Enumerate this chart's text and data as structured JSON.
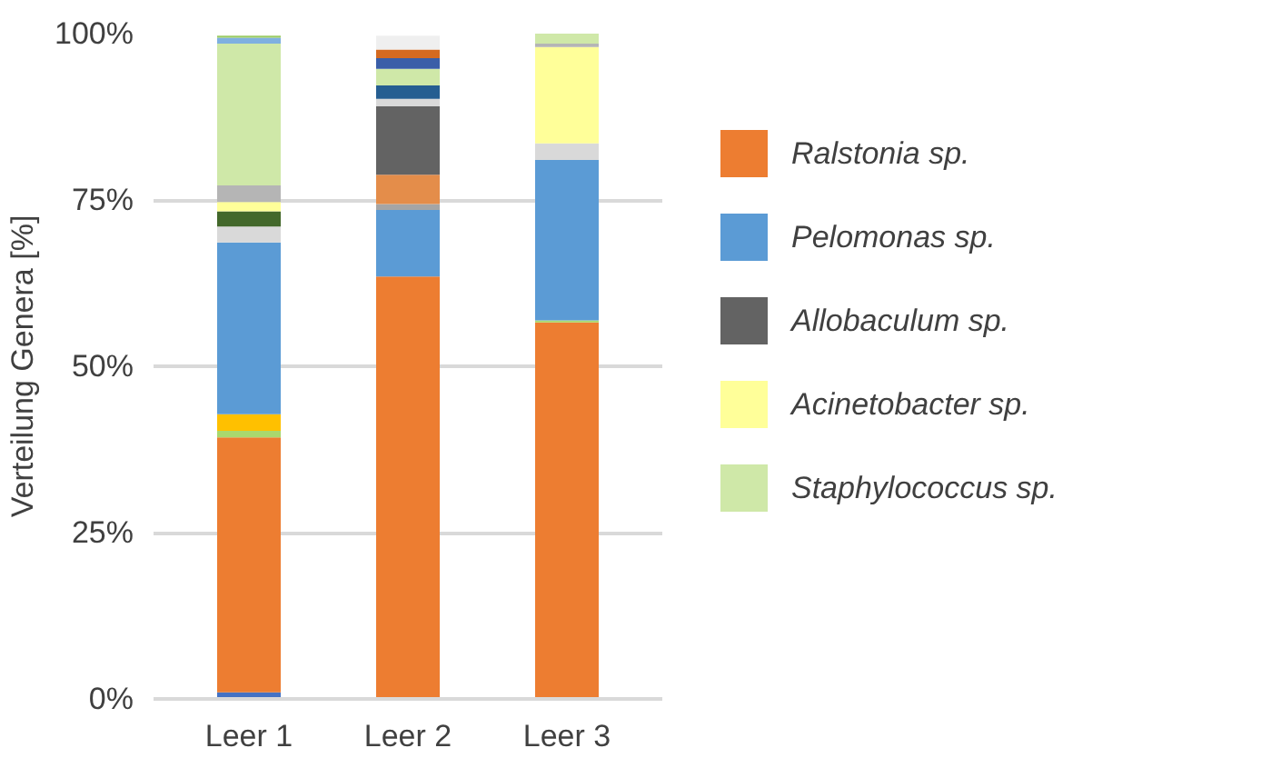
{
  "chart_data": {
    "type": "bar",
    "stacked": true,
    "ylabel": "Verteilung Genera [%]",
    "categories": [
      "Leer 1",
      "Leer 2",
      "Leer 3"
    ],
    "ylim": [
      0,
      100
    ],
    "yticks": [
      {
        "value": 0,
        "label": "0%"
      },
      {
        "value": 25,
        "label": "25%"
      },
      {
        "value": 50,
        "label": "50%"
      },
      {
        "value": 75,
        "label": "75%"
      },
      {
        "value": 100,
        "label": "100%"
      }
    ],
    "grid": "y",
    "legend": "right",
    "series": [
      {
        "color": "#4472c4",
        "values": [
          1,
          null,
          null
        ]
      },
      {
        "name": "Ralstonia sp.",
        "color": "#ed7d31",
        "values": [
          38.3,
          63.5,
          56.6
        ]
      },
      {
        "color": "#a9d86e",
        "values": [
          1,
          null,
          0.3
        ]
      },
      {
        "color": "#ffc000",
        "values": [
          2.5,
          null,
          null
        ]
      },
      {
        "name": "Pelomonas sp.",
        "color": "#5b9bd5",
        "values": [
          25.8,
          10,
          24.1
        ]
      },
      {
        "color": "#a5a5a5",
        "values": [
          null,
          0.9,
          null
        ]
      },
      {
        "color": "#e48d4a",
        "values": [
          null,
          4.4,
          null
        ]
      },
      {
        "name": "Allobaculum sp.",
        "color": "#636363",
        "values": [
          null,
          10.3,
          null
        ]
      },
      {
        "color": "#d9d9d9",
        "values": [
          2.4,
          1.1,
          2.5
        ]
      },
      {
        "color": "#255e91",
        "values": [
          null,
          2,
          null
        ]
      },
      {
        "color": "#43682b",
        "values": [
          2.3,
          null,
          null
        ]
      },
      {
        "name": "Acinetobacter sp.",
        "color": "#ffff99",
        "values": [
          1.4,
          null,
          14.5
        ]
      },
      {
        "color": "#b5b5b5",
        "values": [
          2.5,
          null,
          0.5
        ]
      },
      {
        "name": "Staphylococcus sp.",
        "color": "#cfe8a8",
        "values": [
          21.3,
          2.5,
          1.7
        ]
      },
      {
        "color": "#7fb0e0",
        "values": [
          0.9,
          null,
          null
        ]
      },
      {
        "color": "#3a5ea8",
        "values": [
          null,
          1.6,
          null
        ]
      },
      {
        "color": "#d56a20",
        "values": [
          null,
          1.3,
          null
        ]
      },
      {
        "color": "#9ccc65",
        "values": [
          0.3,
          null,
          null
        ]
      },
      {
        "color": "#efefef",
        "values": [
          null,
          2.1,
          null
        ]
      }
    ]
  }
}
